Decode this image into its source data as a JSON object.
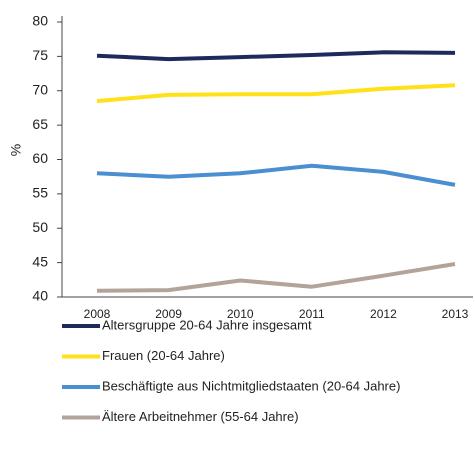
{
  "chart_data": {
    "type": "line",
    "ylabel": "%",
    "categories": [
      "2008",
      "2009",
      "2010",
      "2011",
      "2012",
      "2013"
    ],
    "ylim": [
      40,
      80
    ],
    "yticks": [
      40,
      45,
      50,
      55,
      60,
      65,
      70,
      75,
      80
    ],
    "grid": false,
    "legend": "bottom",
    "series": [
      {
        "name": "Altersgruppe 20-64 Jahre insgesamt",
        "color": "#1f2a5c",
        "values": [
          75.1,
          74.6,
          74.9,
          75.2,
          75.6,
          75.5
        ]
      },
      {
        "name": "Frauen (20-64 Jahre)",
        "color": "#ffe11a",
        "values": [
          68.5,
          69.4,
          69.5,
          69.5,
          70.3,
          70.8
        ]
      },
      {
        "name": "Beschäftigte aus Nichtmitgliedstaaten (20-64 Jahre)",
        "color": "#4a8fd0",
        "values": [
          58.0,
          57.5,
          58.0,
          59.1,
          58.2,
          56.3
        ]
      },
      {
        "name": "Ältere Arbeitnehmer (55-64 Jahre)",
        "color": "#b3a39a",
        "values": [
          40.9,
          41.0,
          42.4,
          41.5,
          43.1,
          44.8
        ]
      }
    ]
  }
}
